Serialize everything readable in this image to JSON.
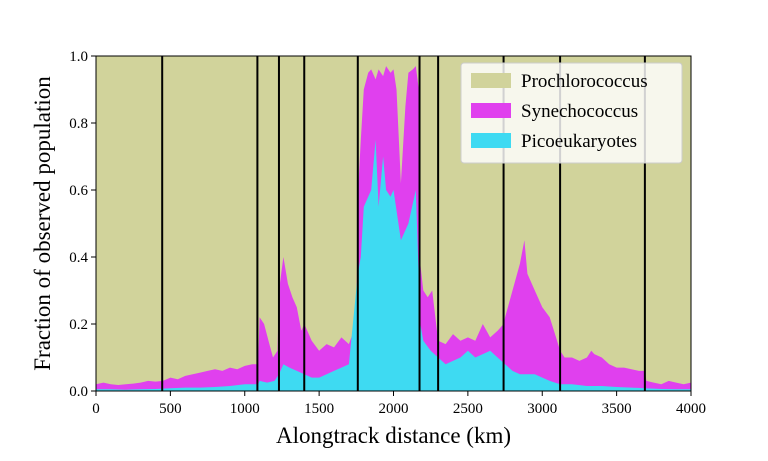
{
  "chart_data": {
    "type": "area",
    "stacked": true,
    "title": "",
    "xlabel": "Alongtrack distance (km)",
    "ylabel": "Fraction of observed population",
    "xlim": [
      0,
      4000
    ],
    "ylim": [
      0,
      1.0
    ],
    "xticks": [
      0,
      500,
      1000,
      1500,
      2000,
      2500,
      3000,
      3500,
      4000
    ],
    "yticks": [
      0.0,
      0.2,
      0.4,
      0.6,
      0.8,
      1.0
    ],
    "ytick_labels": [
      "0.0",
      "0.2",
      "0.4",
      "0.6",
      "0.8",
      "1.0"
    ],
    "legend_position": "top-right",
    "series": [
      {
        "name": "Prochlorococcus",
        "color": "#d1d39b",
        "fill_to_top": true,
        "values": [],
        "note": "remainder to 1.0"
      },
      {
        "name": "Synechococcus",
        "color": "#e040ee",
        "boundary": {
          "x": [
            0,
            50,
            100,
            150,
            200,
            250,
            300,
            350,
            400,
            450,
            500,
            550,
            600,
            650,
            700,
            750,
            800,
            850,
            900,
            950,
            1000,
            1050,
            1090,
            1100,
            1130,
            1160,
            1190,
            1220,
            1230,
            1260,
            1290,
            1320,
            1350,
            1380,
            1400,
            1450,
            1500,
            1550,
            1600,
            1650,
            1700,
            1750,
            1760,
            1780,
            1800,
            1830,
            1850,
            1880,
            1900,
            1930,
            1950,
            1980,
            2000,
            2020,
            2050,
            2080,
            2100,
            2130,
            2150,
            2170,
            2180,
            2200,
            2230,
            2260,
            2300,
            2350,
            2400,
            2450,
            2500,
            2550,
            2600,
            2650,
            2700,
            2740,
            2750,
            2800,
            2850,
            2880,
            2900,
            2950,
            3000,
            3050,
            3100,
            3120,
            3150,
            3200,
            3250,
            3300,
            3330,
            3350,
            3400,
            3450,
            3500,
            3550,
            3600,
            3650,
            3690,
            3700,
            3750,
            3800,
            3850,
            3900,
            3950,
            4000
          ],
          "y": [
            0.02,
            0.025,
            0.02,
            0.018,
            0.02,
            0.022,
            0.025,
            0.03,
            0.028,
            0.03,
            0.04,
            0.035,
            0.045,
            0.05,
            0.055,
            0.06,
            0.065,
            0.06,
            0.07,
            0.065,
            0.075,
            0.08,
            0.08,
            0.22,
            0.2,
            0.15,
            0.1,
            0.12,
            0.3,
            0.4,
            0.32,
            0.28,
            0.25,
            0.18,
            0.2,
            0.15,
            0.12,
            0.14,
            0.13,
            0.16,
            0.14,
            0.2,
            0.58,
            0.75,
            0.9,
            0.95,
            0.96,
            0.93,
            0.96,
            0.94,
            0.97,
            0.95,
            0.96,
            0.9,
            0.62,
            0.85,
            0.95,
            0.96,
            0.97,
            0.9,
            0.38,
            0.3,
            0.28,
            0.3,
            0.15,
            0.14,
            0.17,
            0.15,
            0.16,
            0.15,
            0.2,
            0.16,
            0.18,
            0.2,
            0.22,
            0.3,
            0.38,
            0.45,
            0.35,
            0.3,
            0.25,
            0.22,
            0.15,
            0.12,
            0.1,
            0.1,
            0.09,
            0.1,
            0.12,
            0.11,
            0.1,
            0.08,
            0.07,
            0.07,
            0.065,
            0.06,
            0.06,
            0.03,
            0.025,
            0.02,
            0.03,
            0.025,
            0.02,
            0.025
          ]
        }
      },
      {
        "name": "Picoeukaryotes",
        "color": "#3edaf2",
        "boundary": {
          "x": [
            0,
            100,
            200,
            300,
            400,
            500,
            600,
            700,
            800,
            900,
            1000,
            1090,
            1100,
            1150,
            1200,
            1230,
            1260,
            1300,
            1350,
            1400,
            1450,
            1500,
            1550,
            1600,
            1650,
            1700,
            1760,
            1780,
            1800,
            1850,
            1880,
            1900,
            1930,
            1950,
            1980,
            2000,
            2050,
            2100,
            2150,
            2180,
            2200,
            2250,
            2300,
            2350,
            2400,
            2450,
            2500,
            2550,
            2600,
            2650,
            2700,
            2750,
            2800,
            2850,
            2900,
            2950,
            3000,
            3050,
            3120,
            3200,
            3300,
            3400,
            3500,
            3600,
            3690,
            3800,
            3900,
            4000
          ],
          "y": [
            0.005,
            0.005,
            0.004,
            0.005,
            0.006,
            0.008,
            0.01,
            0.01,
            0.012,
            0.015,
            0.02,
            0.02,
            0.03,
            0.025,
            0.03,
            0.05,
            0.08,
            0.07,
            0.06,
            0.05,
            0.04,
            0.04,
            0.05,
            0.06,
            0.07,
            0.08,
            0.35,
            0.4,
            0.55,
            0.6,
            0.75,
            0.55,
            0.7,
            0.6,
            0.58,
            0.6,
            0.45,
            0.5,
            0.6,
            0.2,
            0.15,
            0.12,
            0.1,
            0.08,
            0.09,
            0.1,
            0.12,
            0.1,
            0.11,
            0.12,
            0.1,
            0.08,
            0.06,
            0.05,
            0.05,
            0.05,
            0.04,
            0.03,
            0.02,
            0.02,
            0.015,
            0.015,
            0.012,
            0.01,
            0.008,
            0.006,
            0.005,
            0.005
          ]
        }
      }
    ],
    "vertical_lines_x": [
      445,
      1085,
      1230,
      1400,
      1760,
      2175,
      2300,
      2740,
      3120,
      3690
    ]
  }
}
